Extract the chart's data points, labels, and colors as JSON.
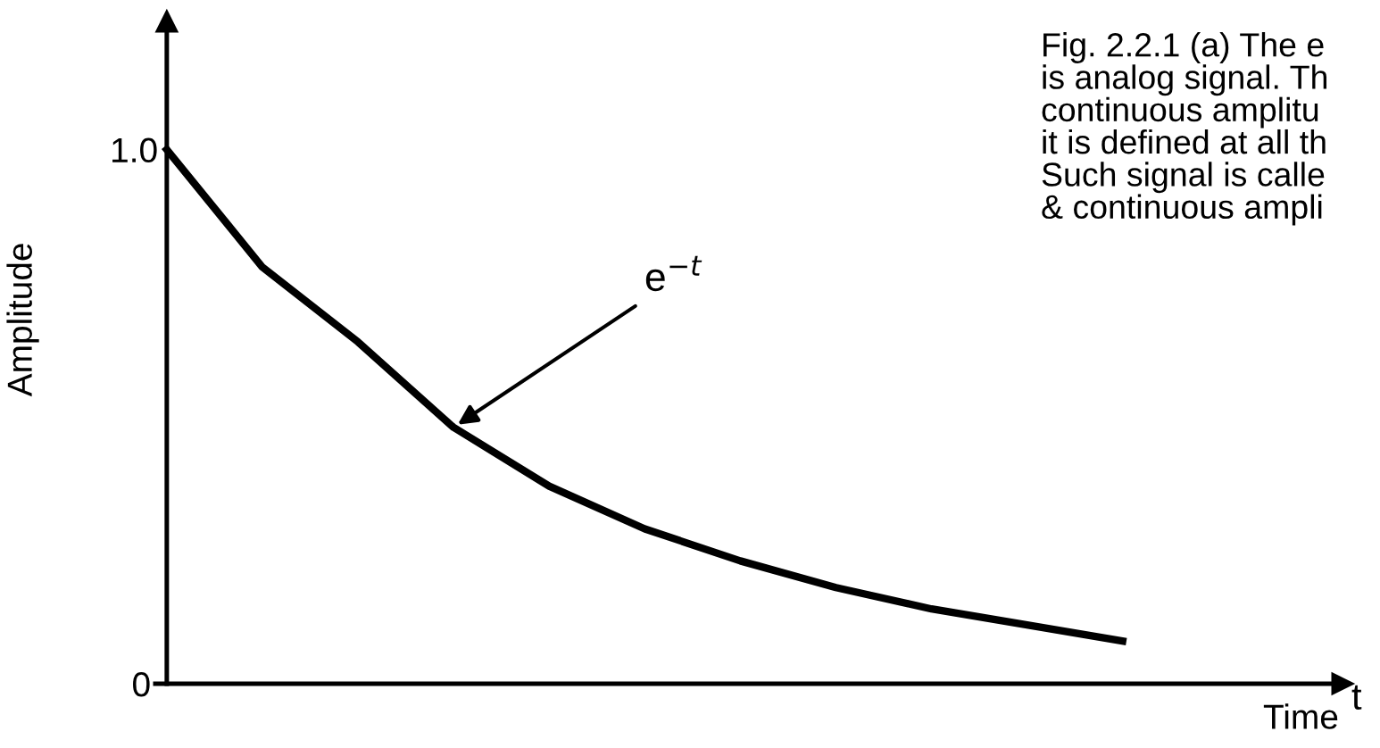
{
  "chart_data": {
    "type": "line",
    "xlabel": "Time",
    "ylabel": "Amplitude",
    "categories": [
      null,
      null,
      null,
      null,
      null,
      null,
      null,
      null,
      null,
      null,
      null
    ],
    "series": [
      {
        "color": "#000000",
        "values": [
          1.0,
          0.78,
          0.64,
          0.48,
          0.37,
          0.29,
          0.23,
          0.18,
          0.14,
          0.11,
          0.08
        ]
      }
    ],
    "ylim": [
      0,
      1.24
    ],
    "yticks": [
      0,
      {
        "value": 1.0,
        "label": "1.0"
      }
    ],
    "grid": false,
    "legend": false,
    "marker": "none",
    "line_style": "solid",
    "annotations": [
      "e$^{−t}$",
      "t",
      "Fig. 2.2.1 (a) The e\nis analog signal. Th\ncontinuous amplitu\nit is defined at all th\nSuch signal is calle\n& continuous ampli"
    ]
  }
}
